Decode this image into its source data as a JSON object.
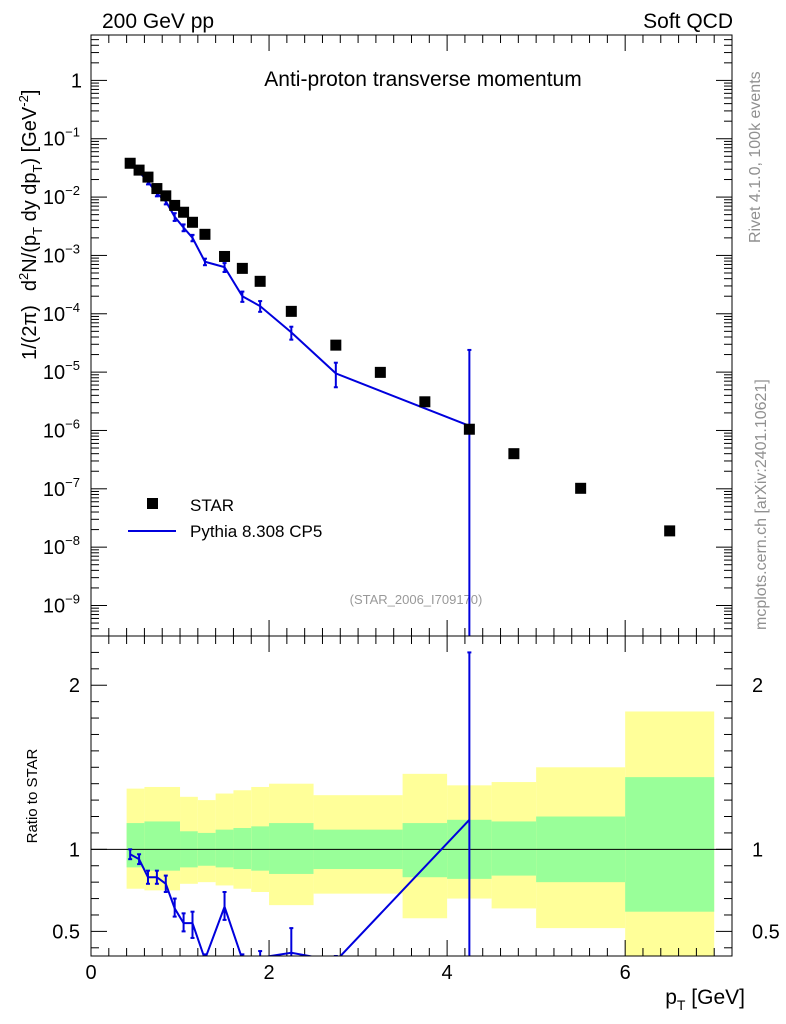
{
  "header": {
    "left": "200 GeV pp",
    "right": "Soft QCD"
  },
  "sidebar": {
    "rivet": "Rivet 4.1.0,  100k events",
    "source": "mcplots.cern.ch [arXiv:2401.10621]"
  },
  "chart_data": [
    {
      "type": "scatter",
      "title": "Anti-proton transverse momentum",
      "analysis_id": "(STAR_2006_I709170)",
      "ylabel": {
        "main": "1/(2π)  d²N/(p_T dy dp_T) [GeV⁻²]",
        "prefix": "1/(2π)",
        "d": "d",
        "sq": "2",
        "n_open": "N/(p",
        "t1": "T",
        "dy_dp": " dy dp",
        "t2": "T",
        "close": ")  [GeV",
        "neg2": "-2",
        "end": "]"
      },
      "yscale": "log",
      "ylim": [
        3e-10,
        6
      ],
      "xlim": [
        0,
        7.2
      ],
      "yticks": [
        {
          "value": 1,
          "base": "1",
          "exp": ""
        },
        {
          "value": 0.1,
          "base": "10",
          "exp": "−1"
        },
        {
          "value": 0.01,
          "base": "10",
          "exp": "−2"
        },
        {
          "value": 0.001,
          "base": "10",
          "exp": "−3"
        },
        {
          "value": 0.0001,
          "base": "10",
          "exp": "−4"
        },
        {
          "value": 1e-05,
          "base": "10",
          "exp": "−5"
        },
        {
          "value": 1e-06,
          "base": "10",
          "exp": "−6"
        },
        {
          "value": 1e-07,
          "base": "10",
          "exp": "−7"
        },
        {
          "value": 1e-08,
          "base": "10",
          "exp": "−8"
        },
        {
          "value": 1e-09,
          "base": "10",
          "exp": "−9"
        }
      ],
      "legend": {
        "position": "bottom-left",
        "entries": [
          {
            "label": "STAR",
            "color": "#000000",
            "marker": "square"
          },
          {
            "label": "Pythia 8.308 CP5",
            "color": "#0000dd",
            "marker": "line"
          }
        ]
      },
      "series": [
        {
          "name": "STAR",
          "color": "#000000",
          "x": [
            0.44,
            0.54,
            0.64,
            0.74,
            0.84,
            0.94,
            1.04,
            1.14,
            1.28,
            1.5,
            1.7,
            1.9,
            2.25,
            2.75,
            3.25,
            3.75,
            4.25,
            4.75,
            5.5,
            6.5
          ],
          "y": [
            0.038,
            0.029,
            0.022,
            0.014,
            0.0105,
            0.0072,
            0.0055,
            0.0037,
            0.0023,
            0.00096,
            0.0006,
            0.00036,
            0.00011,
            2.9e-05,
            9.9e-06,
            3.1e-06,
            1.05e-06,
            4e-07,
            1.02e-07,
            1.9e-08
          ]
        },
        {
          "name": "Pythia 8.308 CP5",
          "color": "#0000dd",
          "x": [
            0.44,
            0.54,
            0.64,
            0.74,
            0.84,
            0.94,
            1.04,
            1.14,
            1.28,
            1.5,
            1.7,
            1.9,
            2.25,
            2.75,
            4.25
          ],
          "y": [
            0.036,
            0.027,
            0.0185,
            0.0115,
            0.0085,
            0.0046,
            0.003,
            0.002,
            0.00078,
            0.00063,
            0.0002,
            0.000135,
            4.8e-05,
            9.5e-06,
            1.2e-06
          ],
          "yerr_lo": [
            0.036,
            0.027,
            0.0165,
            0.0103,
            0.0075,
            0.0039,
            0.0026,
            0.00175,
            0.00068,
            0.00052,
            0.00016,
            0.000108,
            3.6e-05,
            5.5e-06,
            1e-12
          ],
          "yerr_hi": [
            0.037,
            0.028,
            0.0205,
            0.0128,
            0.0095,
            0.0053,
            0.0034,
            0.00225,
            0.00088,
            0.00074,
            0.00024,
            0.000165,
            6e-05,
            1.45e-05,
            2.4e-05
          ]
        }
      ]
    },
    {
      "type": "ratio",
      "ylabel": "Ratio to STAR",
      "xlabel": {
        "p": "p",
        "sub": "T",
        "rest": " [GeV]"
      },
      "xlim": [
        0,
        7.2
      ],
      "ylim": [
        0.35,
        2.3
      ],
      "yticks": [
        {
          "value": 0.5,
          "label": "0.5"
        },
        {
          "value": 1,
          "label": "1"
        },
        {
          "value": 2,
          "label": "2"
        }
      ],
      "xticks": [
        {
          "value": 0,
          "label": "0"
        },
        {
          "value": 2,
          "label": "2"
        },
        {
          "value": 4,
          "label": "4"
        },
        {
          "value": 6,
          "label": "6"
        }
      ],
      "reference_line": 1,
      "bands": [
        {
          "x0": 0.4,
          "x1": 0.6,
          "g_lo": 0.89,
          "g_hi": 1.16,
          "y_lo": 0.76,
          "y_hi": 1.37
        },
        {
          "x0": 0.6,
          "x1": 1.0,
          "g_lo": 0.87,
          "g_hi": 1.17,
          "y_lo": 0.75,
          "y_hi": 1.38
        },
        {
          "x0": 1.0,
          "x1": 1.2,
          "g_lo": 0.89,
          "g_hi": 1.11,
          "y_lo": 0.79,
          "y_hi": 1.32
        },
        {
          "x0": 1.2,
          "x1": 1.4,
          "g_lo": 0.9,
          "g_hi": 1.1,
          "y_lo": 0.8,
          "y_hi": 1.3
        },
        {
          "x0": 1.4,
          "x1": 1.6,
          "g_lo": 0.89,
          "g_hi": 1.12,
          "y_lo": 0.78,
          "y_hi": 1.34
        },
        {
          "x0": 1.6,
          "x1": 1.8,
          "g_lo": 0.88,
          "g_hi": 1.13,
          "y_lo": 0.76,
          "y_hi": 1.36
        },
        {
          "x0": 1.8,
          "x1": 2.0,
          "g_lo": 0.87,
          "g_hi": 1.14,
          "y_lo": 0.74,
          "y_hi": 1.38
        },
        {
          "x0": 2.0,
          "x1": 2.5,
          "g_lo": 0.85,
          "g_hi": 1.16,
          "y_lo": 0.66,
          "y_hi": 1.4
        },
        {
          "x0": 2.5,
          "x1": 3.5,
          "g_lo": 0.88,
          "g_hi": 1.12,
          "y_lo": 0.73,
          "y_hi": 1.33
        },
        {
          "x0": 3.5,
          "x1": 4.0,
          "g_lo": 0.83,
          "g_hi": 1.16,
          "y_lo": 0.58,
          "y_hi": 1.46
        },
        {
          "x0": 4.0,
          "x1": 4.5,
          "g_lo": 0.82,
          "g_hi": 1.18,
          "y_lo": 0.7,
          "y_hi": 1.39
        },
        {
          "x0": 4.5,
          "x1": 5.0,
          "g_lo": 0.84,
          "g_hi": 1.17,
          "y_lo": 0.64,
          "y_hi": 1.41
        },
        {
          "x0": 5.0,
          "x1": 6.0,
          "g_lo": 0.8,
          "g_hi": 1.2,
          "y_lo": 0.52,
          "y_hi": 1.5
        },
        {
          "x0": 6.0,
          "x1": 7.0,
          "g_lo": 0.62,
          "g_hi": 1.44,
          "y_lo": 0.3,
          "y_hi": 1.84
        }
      ],
      "series": [
        {
          "name": "Pythia 8.308 CP5 / STAR",
          "color": "#0000dd",
          "x": [
            0.44,
            0.54,
            0.64,
            0.74,
            0.84,
            0.94,
            1.04,
            1.14,
            1.28,
            1.5,
            1.7,
            1.9,
            2.25,
            2.75,
            4.25
          ],
          "y": [
            0.97,
            0.94,
            0.83,
            0.83,
            0.79,
            0.64,
            0.55,
            0.55,
            0.33,
            0.65,
            0.33,
            0.34,
            0.37,
            0.32,
            1.18
          ],
          "yerr_lo": [
            0.94,
            0.91,
            0.79,
            0.79,
            0.74,
            0.59,
            0.5,
            0.46,
            0.3,
            0.57,
            0.3,
            0.3,
            0.33,
            0.3,
            0.0
          ],
          "yerr_hi": [
            1.0,
            0.97,
            0.87,
            0.87,
            0.84,
            0.7,
            0.61,
            0.62,
            0.36,
            0.74,
            0.36,
            0.38,
            0.52,
            0.35,
            2.2
          ]
        }
      ]
    }
  ]
}
